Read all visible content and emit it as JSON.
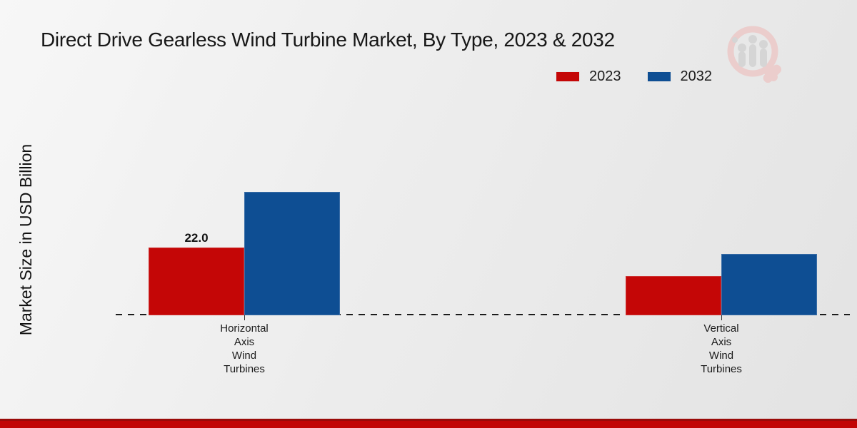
{
  "chart_data": {
    "type": "bar",
    "title": "Direct Drive Gearless Wind Turbine Market, By Type, 2023 & 2032",
    "ylabel": "Market Size in USD Billion",
    "xlabel": "",
    "categories": [
      "Horizontal Axis Wind Turbines",
      "Vertical Axis Wind Turbines"
    ],
    "series": [
      {
        "name": "2023",
        "color": "#c40606",
        "values": [
          22.0,
          12.7
        ],
        "data_labels": [
          "22.0",
          null
        ]
      },
      {
        "name": "2032",
        "color": "#0e4e93",
        "values": [
          40.0,
          19.9
        ],
        "data_labels": [
          null,
          null
        ]
      }
    ],
    "ylim": [
      0,
      44
    ],
    "grid": false,
    "legend_position": "top-right",
    "baseline_style": "dashed"
  },
  "branding": {
    "logo_icon": "magnifier-bar-chart-logo",
    "footer_color_dark": "#9a0b09",
    "footer_color_bright": "#c20505",
    "logo_ring_color": "#ecc9c8",
    "logo_bar_color": "#d2d2d2"
  }
}
